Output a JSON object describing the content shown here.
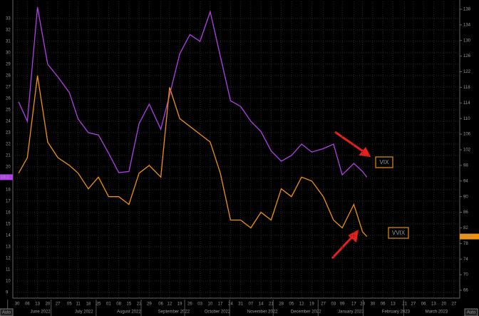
{
  "chart_data": {
    "type": "line",
    "x": [
      "2022-05-31",
      "2022-06-06",
      "2022-06-13",
      "2022-06-20",
      "2022-06-27",
      "2022-07-05",
      "2022-07-11",
      "2022-07-18",
      "2022-07-25",
      "2022-08-01",
      "2022-08-08",
      "2022-08-15",
      "2022-08-22",
      "2022-08-29",
      "2022-09-06",
      "2022-09-12",
      "2022-09-19",
      "2022-09-26",
      "2022-10-03",
      "2022-10-10",
      "2022-10-17",
      "2022-10-24",
      "2022-10-31",
      "2022-11-07",
      "2022-11-14",
      "2022-11-21",
      "2022-11-28",
      "2022-12-05",
      "2022-12-12",
      "2022-12-19",
      "2022-12-27",
      "2023-01-03",
      "2023-01-09",
      "2023-01-17",
      "2023-01-23",
      "2023-01-26"
    ],
    "series": [
      {
        "name": "VIX",
        "color": "#b040e8",
        "axis": "y",
        "values": [
          25.7,
          24.0,
          34.0,
          29.0,
          27.9,
          26.5,
          24.2,
          23.0,
          22.8,
          21.2,
          19.5,
          19.6,
          23.8,
          25.5,
          23.3,
          26.3,
          29.9,
          31.6,
          31.0,
          33.6,
          29.7,
          25.8,
          25.3,
          24.0,
          23.1,
          21.4,
          20.5,
          21.0,
          22.0,
          21.3,
          21.6,
          22.0,
          19.3,
          20.3,
          19.6,
          19.1
        ]
      },
      {
        "name": "VVIX",
        "color": "#f0920c",
        "axis": "y2",
        "values": [
          96,
          100,
          121,
          104,
          100,
          98,
          96,
          92,
          95,
          90,
          90,
          88,
          96,
          98,
          95,
          118,
          110,
          108,
          106,
          104,
          96,
          84,
          84,
          82,
          86,
          84,
          92,
          90,
          95,
          94,
          90,
          84,
          82,
          88,
          81,
          79.79
        ]
      }
    ],
    "xlim": [
      "2022-05-27",
      "2023-03-31"
    ],
    "xticks": [
      {
        "value": "2022-05-30",
        "label": "30"
      },
      {
        "value": "2022-06-06",
        "label": "06"
      },
      {
        "value": "2022-06-13",
        "label": "13"
      },
      {
        "value": "2022-06-20",
        "label": "20"
      },
      {
        "value": "2022-06-27",
        "label": "27"
      },
      {
        "value": "2022-07-05",
        "label": "05"
      },
      {
        "value": "2022-07-11",
        "label": "11"
      },
      {
        "value": "2022-07-18",
        "label": "18"
      },
      {
        "value": "2022-07-25",
        "label": "25"
      },
      {
        "value": "2022-08-01",
        "label": "01"
      },
      {
        "value": "2022-08-08",
        "label": "08"
      },
      {
        "value": "2022-08-15",
        "label": "15"
      },
      {
        "value": "2022-08-22",
        "label": "22"
      },
      {
        "value": "2022-08-29",
        "label": "29"
      },
      {
        "value": "2022-09-06",
        "label": "06"
      },
      {
        "value": "2022-09-12",
        "label": "12"
      },
      {
        "value": "2022-09-19",
        "label": "19"
      },
      {
        "value": "2022-09-26",
        "label": "26"
      },
      {
        "value": "2022-10-03",
        "label": "03"
      },
      {
        "value": "2022-10-10",
        "label": "10"
      },
      {
        "value": "2022-10-17",
        "label": "17"
      },
      {
        "value": "2022-10-24",
        "label": "24"
      },
      {
        "value": "2022-10-31",
        "label": "31"
      },
      {
        "value": "2022-11-07",
        "label": "07"
      },
      {
        "value": "2022-11-14",
        "label": "14"
      },
      {
        "value": "2022-11-21",
        "label": "21"
      },
      {
        "value": "2022-11-28",
        "label": "28"
      },
      {
        "value": "2022-12-05",
        "label": "05"
      },
      {
        "value": "2022-12-12",
        "label": "12"
      },
      {
        "value": "2022-12-19",
        "label": "19"
      },
      {
        "value": "2022-12-27",
        "label": "27"
      },
      {
        "value": "2023-01-03",
        "label": "03"
      },
      {
        "value": "2023-01-09",
        "label": "09"
      },
      {
        "value": "2023-01-17",
        "label": "17"
      },
      {
        "value": "2023-01-23",
        "label": "23"
      },
      {
        "value": "2023-01-30",
        "label": "30"
      },
      {
        "value": "2023-02-06",
        "label": "06"
      },
      {
        "value": "2023-02-13",
        "label": "13"
      },
      {
        "value": "2023-02-21",
        "label": "21"
      },
      {
        "value": "2023-02-27",
        "label": "27"
      },
      {
        "value": "2023-03-06",
        "label": "06"
      },
      {
        "value": "2023-03-13",
        "label": "13"
      },
      {
        "value": "2023-03-20",
        "label": "20"
      },
      {
        "value": "2023-03-27",
        "label": "27"
      }
    ],
    "month_ticks": [
      {
        "value": "2022-06-15",
        "label": "June 2022"
      },
      {
        "value": "2022-07-15",
        "label": "July 2022"
      },
      {
        "value": "2022-08-15",
        "label": "August 2022"
      },
      {
        "value": "2022-09-15",
        "label": "September 2022"
      },
      {
        "value": "2022-10-15",
        "label": "October 2022"
      },
      {
        "value": "2022-11-15",
        "label": "November 2022"
      },
      {
        "value": "2022-12-15",
        "label": "December 2022"
      },
      {
        "value": "2023-01-15",
        "label": "January 2023"
      },
      {
        "value": "2023-02-15",
        "label": "February 2023"
      },
      {
        "value": "2023-03-15",
        "label": "March 2023"
      }
    ],
    "ylim": [
      8.5,
      34.5
    ],
    "yticks": [
      9,
      10,
      11,
      12,
      13,
      14,
      15,
      16,
      17,
      18,
      19,
      20,
      21,
      22,
      23,
      24,
      25,
      26,
      27,
      28,
      29,
      30,
      31,
      32,
      33
    ],
    "y2lim": [
      64,
      140
    ],
    "y2ticks": [
      66,
      70,
      74,
      78,
      82,
      86,
      90,
      94,
      98,
      102,
      106,
      110,
      114,
      118,
      122,
      126,
      130,
      134,
      138
    ],
    "grid": true,
    "buttons": [
      "Auto",
      "Auto"
    ]
  }
}
